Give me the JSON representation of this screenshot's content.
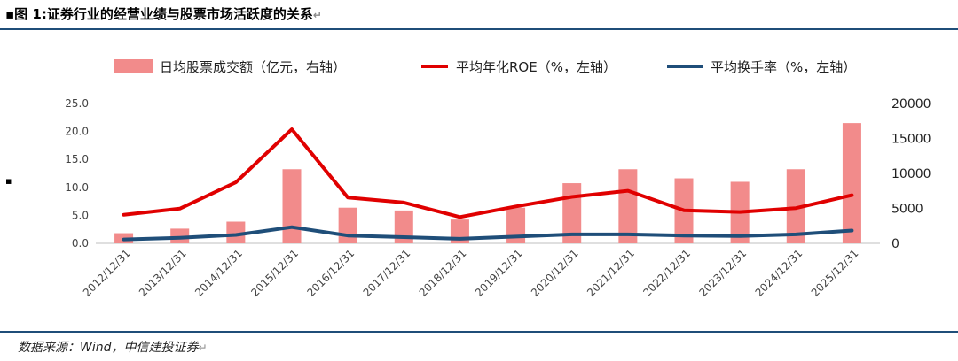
{
  "header": {
    "title": "▪图 1:证券行业的经营业绩与股票市场活跃度的关系",
    "return_glyph": "↵"
  },
  "footer": {
    "source": "数据来源：Wind，中信建投证券",
    "return_glyph": "↵"
  },
  "side_marker": "▪",
  "colors": {
    "bar": "#f28b8b",
    "roe_line": "#e00000",
    "turnover_line": "#1f4e79",
    "rule": "#1f4e79"
  },
  "chart_data": {
    "type": "bar",
    "categories": [
      "2012/12/31",
      "2013/12/31",
      "2014/12/31",
      "2015/12/31",
      "2016/12/31",
      "2017/12/31",
      "2018/12/31",
      "2019/12/31",
      "2020/12/31",
      "2021/12/31",
      "2022/12/31",
      "2023/12/31",
      "2024/12/31",
      "2025/12/31"
    ],
    "series": [
      {
        "name": "日均股票成交额（亿元，右轴）",
        "type": "bar",
        "axis": "right",
        "values": [
          1450,
          2100,
          3100,
          10600,
          5100,
          4700,
          3400,
          5100,
          8600,
          10600,
          9300,
          8800,
          10600,
          17200
        ]
      },
      {
        "name": "平均年化ROE（%，左轴）",
        "type": "line",
        "axis": "left",
        "values": [
          5.1,
          6.2,
          10.9,
          20.4,
          8.2,
          7.3,
          4.7,
          6.6,
          8.3,
          9.4,
          5.9,
          5.6,
          6.3,
          8.6
        ]
      },
      {
        "name": "平均换手率（%，左轴）",
        "type": "line",
        "axis": "left",
        "values": [
          0.7,
          1.0,
          1.5,
          2.9,
          1.4,
          1.1,
          0.8,
          1.2,
          1.6,
          1.6,
          1.4,
          1.3,
          1.6,
          2.3
        ]
      }
    ],
    "y_left": {
      "ticks": [
        "0.0",
        "5.0",
        "10.0",
        "15.0",
        "20.0",
        "25.0"
      ],
      "range": [
        0,
        25
      ]
    },
    "y_right": {
      "ticks": [
        "0",
        "5000",
        "10000",
        "15000",
        "20000"
      ],
      "range": [
        0,
        20000
      ]
    },
    "legend_position": "top",
    "grid": false
  }
}
